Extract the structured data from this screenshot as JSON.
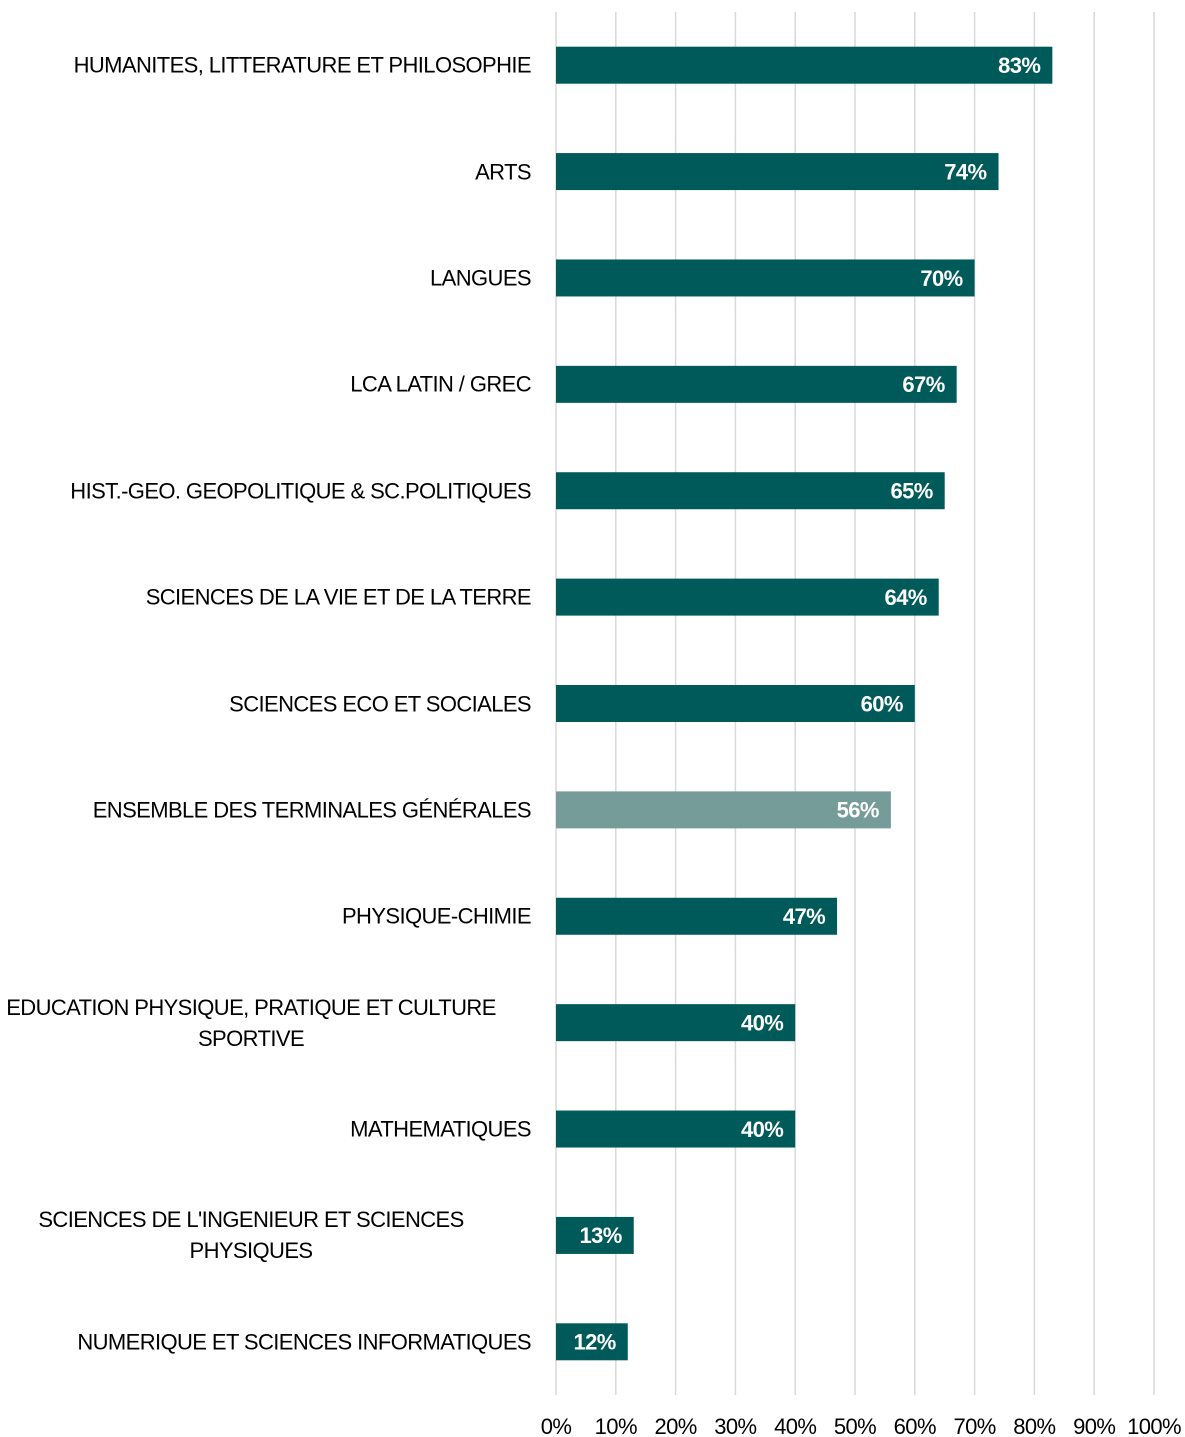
{
  "chart_data": {
    "type": "bar",
    "orientation": "horizontal",
    "categories": [
      "HUMANITES, LITTERATURE ET PHILOSOPHIE",
      "ARTS",
      "LANGUES",
      "LCA LATIN / GREC",
      "HIST.-GEO. GEOPOLITIQUE & SC.POLITIQUES",
      "SCIENCES DE LA VIE ET DE LA TERRE",
      "SCIENCES ECO ET SOCIALES",
      "ENSEMBLE DES TERMINALES GÉNÉRALES",
      "PHYSIQUE-CHIMIE",
      "EDUCATION PHYSIQUE, PRATIQUE ET CULTURE\nSPORTIVE",
      "MATHEMATIQUES",
      "SCIENCES DE L'INGENIEUR ET SCIENCES\nPHYSIQUES",
      "NUMERIQUE ET SCIENCES INFORMATIQUES"
    ],
    "values": [
      83,
      74,
      70,
      67,
      65,
      64,
      60,
      56,
      47,
      40,
      40,
      13,
      12
    ],
    "value_labels": [
      "83%",
      "74%",
      "70%",
      "67%",
      "65%",
      "64%",
      "60%",
      "56%",
      "47%",
      "40%",
      "40%",
      "13%",
      "12%"
    ],
    "colors": [
      "#005a5a",
      "#005a5a",
      "#005a5a",
      "#005a5a",
      "#005a5a",
      "#005a5a",
      "#005a5a",
      "#769c9a",
      "#005a5a",
      "#005a5a",
      "#005a5a",
      "#005a5a",
      "#005a5a"
    ],
    "xlim": [
      0,
      100
    ],
    "xticks": [
      {
        "value": 0,
        "label": "0%"
      },
      {
        "value": 10,
        "label": "10%"
      },
      {
        "value": 20,
        "label": "20%"
      },
      {
        "value": 30,
        "label": "30%"
      },
      {
        "value": 40,
        "label": "40%"
      },
      {
        "value": 50,
        "label": "50%"
      },
      {
        "value": 60,
        "label": "60%"
      },
      {
        "value": 70,
        "label": "70%"
      },
      {
        "value": 80,
        "label": "80%"
      },
      {
        "value": 90,
        "label": "90%"
      },
      {
        "value": 100,
        "label": "100%"
      }
    ],
    "grid": true
  }
}
